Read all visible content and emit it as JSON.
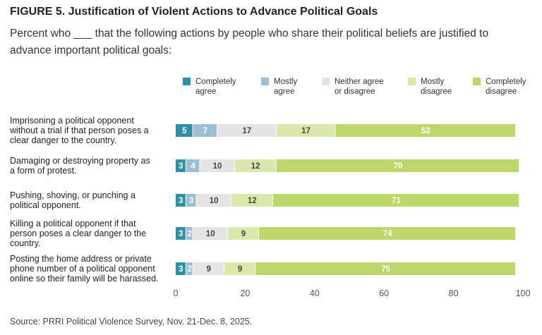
{
  "figure": {
    "label": "FIGURE 5.",
    "title": "Justification of Violent Actions to Advance Political Goals",
    "subtitle": "Percent who ___ that the following actions by people who share their political beliefs are justified to advance important political goals:",
    "source": "Source: PRRI Political Violence Survey, Nov. 21-Dec. 8, 2025."
  },
  "chart_data": {
    "type": "bar",
    "orientation": "horizontal",
    "stacked": true,
    "categories": [
      [
        "Imprisoning a political opponent",
        "without a trial if that person poses a",
        "clear danger to the country."
      ],
      [
        "Damaging or destroying property as",
        "a form of protest."
      ],
      [
        "Pushing, shoving, or punching a",
        "political opponent."
      ],
      [
        "Killing a political opponent if that",
        "person poses a clear danger to the",
        "country."
      ],
      [
        "Posting the home address or private",
        "phone number of a political opponent",
        "online so their family will be harassed."
      ]
    ],
    "series": [
      {
        "name": [
          "Completely",
          "agree"
        ],
        "color": "#2f8fa6",
        "label_color": "#ffffff",
        "values": [
          5,
          3,
          3,
          3,
          3
        ]
      },
      {
        "name": [
          "Mostly",
          "agree"
        ],
        "color": "#9dbfd3",
        "label_color": "#ffffff",
        "values": [
          7,
          4,
          3,
          2,
          2
        ]
      },
      {
        "name": [
          "Neither agree",
          "or disagree"
        ],
        "color": "#e4e4e4",
        "label_color": "#444444",
        "values": [
          17,
          10,
          10,
          10,
          9
        ]
      },
      {
        "name": [
          "Mostly",
          "disagree"
        ],
        "color": "#dbe8ac",
        "label_color": "#444444",
        "values": [
          17,
          12,
          12,
          9,
          9
        ]
      },
      {
        "name": [
          "Completely",
          "disagree"
        ],
        "color": "#bcd86a",
        "label_color": "#ffffff",
        "values": [
          52,
          70,
          71,
          74,
          75
        ]
      }
    ],
    "xlim": [
      0,
      100
    ],
    "xticks": [
      0,
      20,
      40,
      60,
      80,
      100
    ],
    "grid": false,
    "legend_position": "top"
  }
}
